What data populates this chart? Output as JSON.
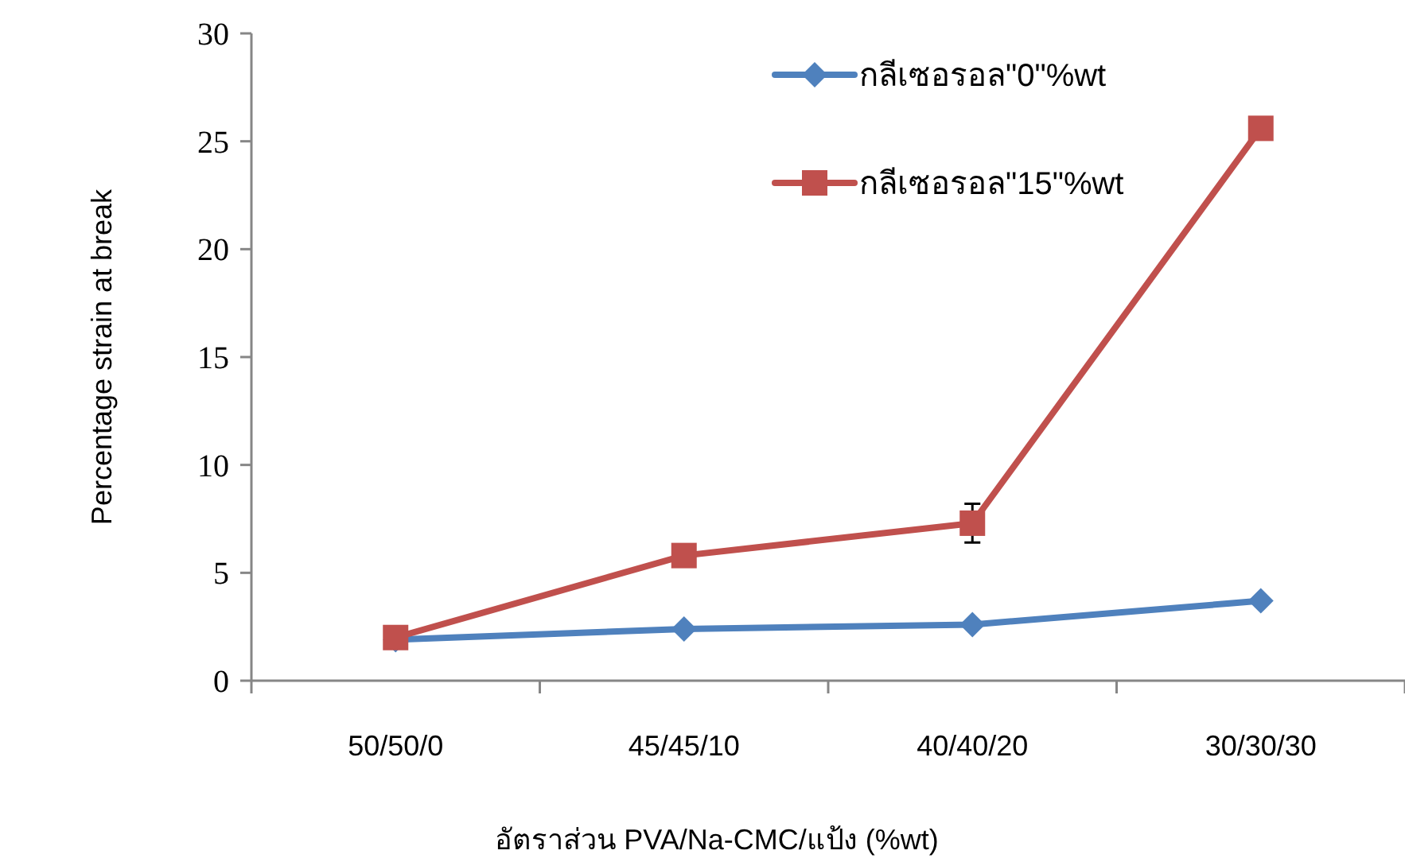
{
  "chart_data": {
    "type": "line",
    "xlabel": "อัตราส่วน PVA/Na-CMC/แป้ง (%wt)",
    "ylabel": "Percentage strain at break",
    "categories": [
      "50/50/0",
      "45/45/10",
      "40/40/20",
      "30/30/30"
    ],
    "series": [
      {
        "name": "กลีเซอรอล\"0\"%wt",
        "color": "#4f81bd",
        "marker": "diamond",
        "values": [
          1.9,
          2.4,
          2.6,
          3.7
        ]
      },
      {
        "name": "กลีเซอรอล\"15\"%wt",
        "color": "#c0504d",
        "marker": "square",
        "values": [
          2.0,
          5.8,
          7.3,
          25.6
        ],
        "errors": [
          null,
          null,
          0.9,
          null
        ]
      }
    ],
    "ylim": [
      0,
      30
    ],
    "yticks": [
      0,
      5,
      10,
      15,
      20,
      25,
      30
    ],
    "grid": false,
    "legend": "top right"
  }
}
